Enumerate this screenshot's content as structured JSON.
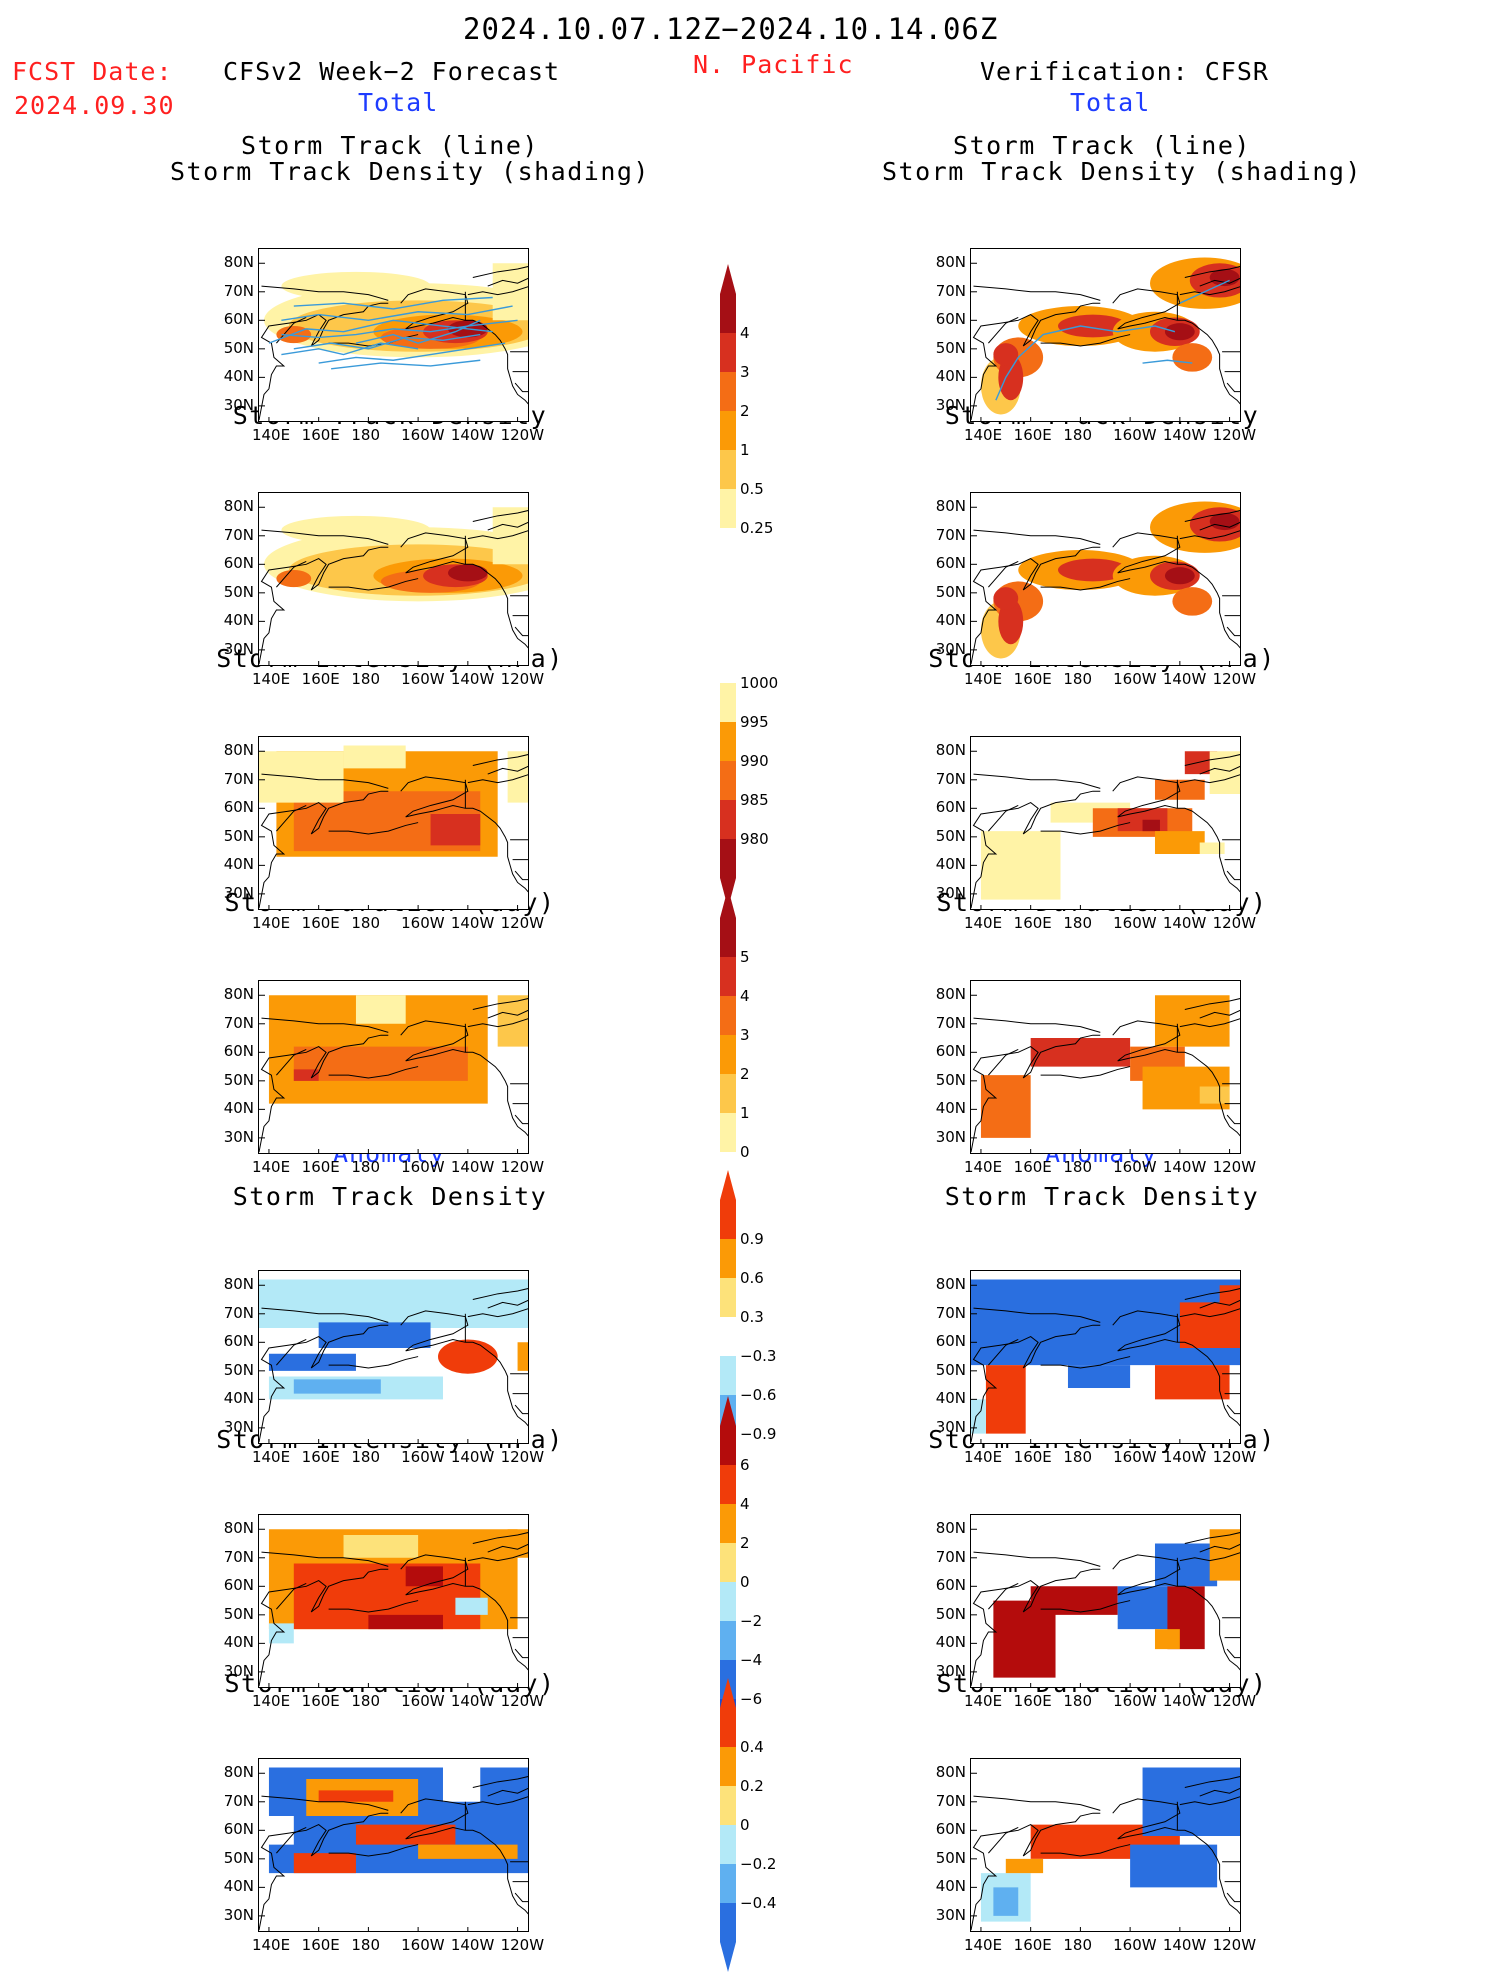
{
  "header": {
    "date_range": "2024.10.07.12Z−2024.10.14.06Z",
    "region": "N. Pacific",
    "fcst_label": "FCST Date:",
    "fcst_date": "2024.09.30",
    "left_title": "CFSv2 Week−2 Forecast",
    "right_title": "Verification: CFSR",
    "total_label": "Total",
    "anomaly_label": "Anomaly"
  },
  "panel_titles": {
    "track_line": "Storm Track (line)",
    "track_density_shading": "Storm Track Density (shading)",
    "track_density": "Storm Track Density",
    "intensity": "Storm Intensity (hPa)",
    "duration": "Storm Duration (day)"
  },
  "axes": {
    "lat_labels": [
      "80N",
      "70N",
      "60N",
      "50N",
      "40N",
      "30N"
    ],
    "lon_labels": [
      "140E",
      "160E",
      "180",
      "160W",
      "140W",
      "120W"
    ]
  },
  "colorbars": {
    "density": {
      "labels": [
        "4",
        "3",
        "2",
        "1",
        "0.5",
        "0.25"
      ],
      "colors": [
        "#a50f15",
        "#d7301f",
        "#f46d15",
        "#fb9a06",
        "#fdc74a",
        "#fff3a6"
      ]
    },
    "intensity": {
      "labels": [
        "1000",
        "995",
        "990",
        "985",
        "980"
      ],
      "colors": [
        "#fff3a6",
        "#fb9a06",
        "#f46d15",
        "#d7301f",
        "#a50f15"
      ]
    },
    "duration": {
      "labels": [
        "5",
        "4",
        "3",
        "2",
        "1",
        "0"
      ],
      "colors": [
        "#a50f15",
        "#d7301f",
        "#f46d15",
        "#fb9a06",
        "#fdc74a",
        "#fff3a6"
      ]
    },
    "anom_density": {
      "labels": [
        "0.9",
        "0.6",
        "0.3",
        "−0.3",
        "−0.6",
        "−0.9"
      ],
      "colors": [
        "#f03c0a",
        "#fb9a06",
        "#fde27a",
        "#ffffff",
        "#b3e9f7",
        "#5fb0f0",
        "#2a6fe0"
      ]
    },
    "anom_intensity": {
      "labels": [
        "6",
        "4",
        "2",
        "0",
        "−2",
        "−4",
        "−6"
      ],
      "colors": [
        "#b40c0c",
        "#f03c0a",
        "#fb9a06",
        "#fde27a",
        "#b3e9f7",
        "#5fb0f0",
        "#2a6fe0",
        "#1c4fd0"
      ]
    },
    "anom_duration": {
      "labels": [
        "0.4",
        "0.2",
        "0",
        "−0.2",
        "−0.4"
      ],
      "colors": [
        "#f03c0a",
        "#fb9a06",
        "#fde27a",
        "#b3e9f7",
        "#5fb0f0",
        "#2a6fe0"
      ]
    }
  },
  "palette": {
    "track_line": "#3a9ad9",
    "coast": "#000000"
  }
}
